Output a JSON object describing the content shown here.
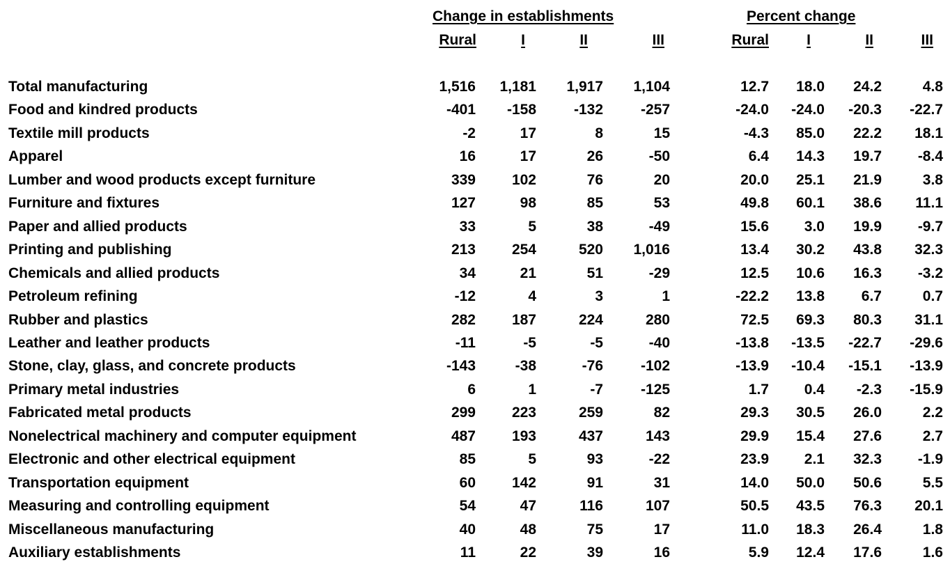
{
  "header": {
    "group_change": "Change in establishments",
    "group_percent": "Percent change",
    "sub_change": [
      "Rural",
      "I",
      "II",
      "III"
    ],
    "sub_percent": [
      "Rural",
      "I",
      "II",
      "III"
    ]
  },
  "rows": [
    {
      "label": "Total manufacturing",
      "change": [
        "1,516",
        "1,181",
        "1,917",
        "1,104"
      ],
      "percent": [
        "12.7",
        "18.0",
        "24.2",
        "4.8"
      ]
    },
    {
      "label": "Food and kindred products",
      "change": [
        "-401",
        "-158",
        "-132",
        "-257"
      ],
      "percent": [
        "-24.0",
        "-24.0",
        "-20.3",
        "-22.7"
      ]
    },
    {
      "label": "Textile mill products",
      "change": [
        "-2",
        "17",
        "8",
        "15"
      ],
      "percent": [
        "-4.3",
        "85.0",
        "22.2",
        "18.1"
      ]
    },
    {
      "label": "Apparel",
      "change": [
        "16",
        "17",
        "26",
        "-50"
      ],
      "percent": [
        "6.4",
        "14.3",
        "19.7",
        "-8.4"
      ]
    },
    {
      "label": "Lumber and wood products except furniture",
      "change": [
        "339",
        "102",
        "76",
        "20"
      ],
      "percent": [
        "20.0",
        "25.1",
        "21.9",
        "3.8"
      ]
    },
    {
      "label": "Furniture and fixtures",
      "change": [
        "127",
        "98",
        "85",
        "53"
      ],
      "percent": [
        "49.8",
        "60.1",
        "38.6",
        "11.1"
      ]
    },
    {
      "label": "Paper and allied products",
      "change": [
        "33",
        "5",
        "38",
        "-49"
      ],
      "percent": [
        "15.6",
        "3.0",
        "19.9",
        "-9.7"
      ]
    },
    {
      "label": "Printing and publishing",
      "change": [
        "213",
        "254",
        "520",
        "1,016"
      ],
      "percent": [
        "13.4",
        "30.2",
        "43.8",
        "32.3"
      ]
    },
    {
      "label": "Chemicals and allied products",
      "change": [
        "34",
        "21",
        "51",
        "-29"
      ],
      "percent": [
        "12.5",
        "10.6",
        "16.3",
        "-3.2"
      ]
    },
    {
      "label": "Petroleum refining",
      "change": [
        "-12",
        "4",
        "3",
        "1"
      ],
      "percent": [
        "-22.2",
        "13.8",
        "6.7",
        "0.7"
      ]
    },
    {
      "label": "Rubber and plastics",
      "change": [
        "282",
        "187",
        "224",
        "280"
      ],
      "percent": [
        "72.5",
        "69.3",
        "80.3",
        "31.1"
      ]
    },
    {
      "label": "Leather and leather products",
      "change": [
        "-11",
        "-5",
        "-5",
        "-40"
      ],
      "percent": [
        "-13.8",
        "-13.5",
        "-22.7",
        "-29.6"
      ]
    },
    {
      "label": "Stone, clay, glass, and concrete products",
      "change": [
        "-143",
        "-38",
        "-76",
        "-102"
      ],
      "percent": [
        "-13.9",
        "-10.4",
        "-15.1",
        "-13.9"
      ]
    },
    {
      "label": "Primary metal industries",
      "change": [
        "6",
        "1",
        "-7",
        "-125"
      ],
      "percent": [
        "1.7",
        "0.4",
        "-2.3",
        "-15.9"
      ]
    },
    {
      "label": "Fabricated metal products",
      "change": [
        "299",
        "223",
        "259",
        "82"
      ],
      "percent": [
        "29.3",
        "30.5",
        "26.0",
        "2.2"
      ]
    },
    {
      "label": "Nonelectrical machinery and computer equipment",
      "change": [
        "487",
        "193",
        "437",
        "143"
      ],
      "percent": [
        "29.9",
        "15.4",
        "27.6",
        "2.7"
      ]
    },
    {
      "label": "Electronic and other electrical equipment",
      "change": [
        "85",
        "5",
        "93",
        "-22"
      ],
      "percent": [
        "23.9",
        "2.1",
        "32.3",
        "-1.9"
      ]
    },
    {
      "label": "Transportation equipment",
      "change": [
        "60",
        "142",
        "91",
        "31"
      ],
      "percent": [
        "14.0",
        "50.0",
        "50.6",
        "5.5"
      ]
    },
    {
      "label": "Measuring and controlling equipment",
      "change": [
        "54",
        "47",
        "116",
        "107"
      ],
      "percent": [
        "50.5",
        "43.5",
        "76.3",
        "20.1"
      ]
    },
    {
      "label": "Miscellaneous manufacturing",
      "change": [
        "40",
        "48",
        "75",
        "17"
      ],
      "percent": [
        "11.0",
        "18.3",
        "26.4",
        "1.8"
      ]
    },
    {
      "label": "Auxiliary establishments",
      "change": [
        "11",
        "22",
        "39",
        "16"
      ],
      "percent": [
        "5.9",
        "12.4",
        "17.6",
        "1.6"
      ]
    }
  ]
}
